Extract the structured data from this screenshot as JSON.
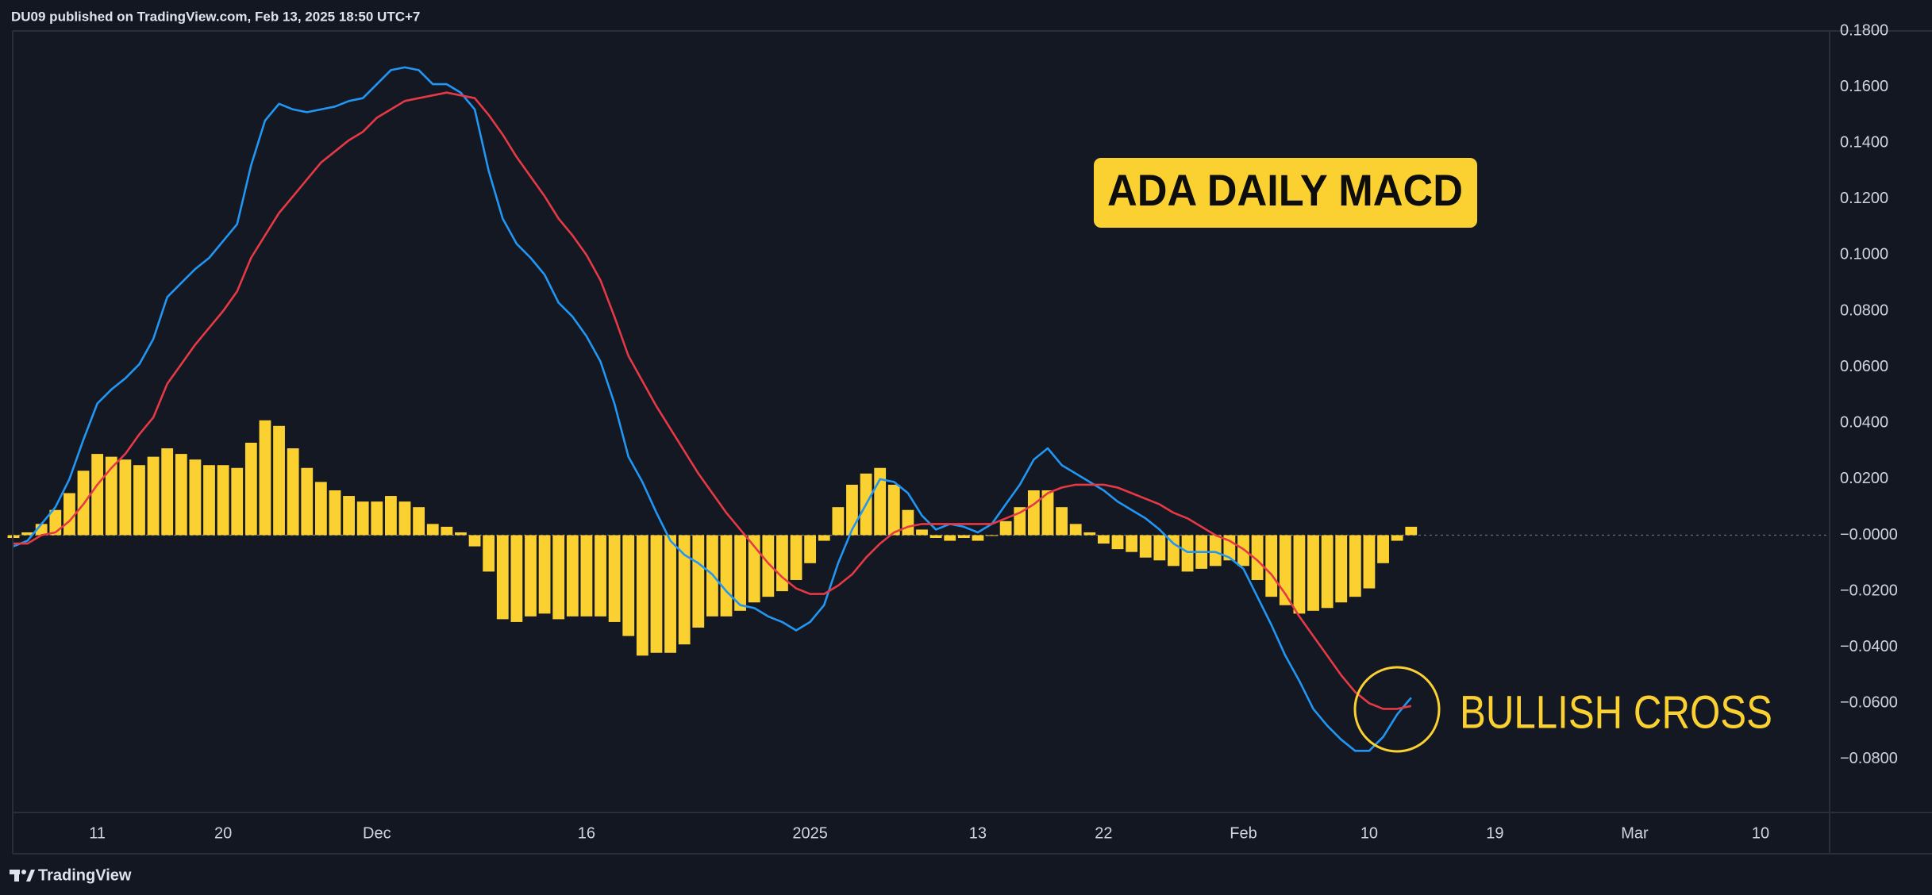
{
  "header": {
    "text": "DU09 published on TradingView.com, Feb 13, 2025 18:50 UTC+7"
  },
  "footer": {
    "brand": "TradingView"
  },
  "chart_data": {
    "type": "macd",
    "annotations": [
      {
        "text": "ADA DAILY MACD"
      },
      {
        "text": "BULLISH CROSS"
      }
    ],
    "categories": [
      null,
      null,
      null,
      null,
      null,
      null,
      "11",
      null,
      null,
      null,
      null,
      null,
      null,
      null,
      null,
      "20",
      null,
      null,
      null,
      null,
      null,
      null,
      null,
      null,
      null,
      null,
      "Dec",
      null,
      null,
      null,
      null,
      null,
      null,
      null,
      null,
      null,
      null,
      null,
      null,
      null,
      null,
      "16",
      null,
      null,
      null,
      null,
      null,
      null,
      null,
      null,
      null,
      null,
      null,
      null,
      null,
      null,
      null,
      "2025",
      null,
      null,
      null,
      null,
      null,
      null,
      null,
      null,
      null,
      null,
      null,
      "13",
      null,
      null,
      null,
      null,
      null,
      null,
      null,
      null,
      "22",
      null,
      null,
      null,
      null,
      null,
      null,
      null,
      null,
      null,
      "Feb",
      null,
      null,
      null,
      null,
      null,
      null,
      null,
      null,
      "10",
      null,
      null,
      null,
      null,
      null,
      null,
      null,
      null,
      "19",
      null,
      null,
      null,
      null,
      null,
      null,
      null,
      null,
      null,
      "Mar",
      null,
      null,
      null,
      null,
      null,
      null,
      null,
      null,
      "10",
      null,
      null,
      null,
      null
    ],
    "series": [
      {
        "type": "bar",
        "color": "#fbd132",
        "values": [
          -0.001,
          0.001,
          0.004,
          0.009,
          0.015,
          0.023,
          0.029,
          0.028,
          0.027,
          0.025,
          0.028,
          0.031,
          0.029,
          0.027,
          0.025,
          0.025,
          0.024,
          0.033,
          0.041,
          0.039,
          0.031,
          0.024,
          0.019,
          0.016,
          0.014,
          0.012,
          0.012,
          0.014,
          0.012,
          0.01,
          0.004,
          0.003,
          0.001,
          -0.004,
          -0.013,
          -0.03,
          -0.031,
          -0.029,
          -0.028,
          -0.03,
          -0.029,
          -0.029,
          -0.029,
          -0.031,
          -0.036,
          -0.043,
          -0.042,
          -0.042,
          -0.039,
          -0.033,
          -0.029,
          -0.029,
          -0.027,
          -0.024,
          -0.022,
          -0.02,
          -0.016,
          -0.01,
          -0.002,
          0.01,
          0.018,
          0.022,
          0.024,
          0.018,
          0.009,
          0.002,
          -0.001,
          -0.002,
          -0.001,
          -0.002,
          0.0,
          0.005,
          0.01,
          0.016,
          0.016,
          0.01,
          0.004,
          0.001,
          -0.003,
          -0.005,
          -0.006,
          -0.008,
          -0.009,
          -0.011,
          -0.013,
          -0.012,
          -0.011,
          -0.009,
          -0.011,
          -0.016,
          -0.022,
          -0.025,
          -0.028,
          -0.027,
          -0.026,
          -0.024,
          -0.022,
          -0.019,
          -0.01,
          -0.002,
          0.003,
          null,
          null,
          null,
          null,
          null,
          null,
          null,
          null,
          null,
          null,
          null,
          null,
          null,
          null,
          null,
          null,
          null,
          null,
          null,
          null,
          null,
          null,
          null,
          null,
          null,
          null,
          null,
          null,
          null
        ]
      },
      {
        "type": "line",
        "color": "#2196f3",
        "values": [
          -0.004,
          -0.002,
          0.004,
          0.01,
          0.02,
          0.034,
          0.047,
          0.052,
          0.056,
          0.061,
          0.07,
          0.085,
          0.09,
          0.095,
          0.099,
          0.105,
          0.111,
          0.132,
          0.148,
          0.154,
          0.152,
          0.151,
          0.152,
          0.153,
          0.155,
          0.156,
          0.161,
          0.166,
          0.167,
          0.166,
          0.161,
          0.161,
          0.158,
          0.152,
          0.13,
          0.113,
          0.104,
          0.099,
          0.093,
          0.083,
          0.078,
          0.071,
          0.062,
          0.047,
          0.028,
          0.019,
          0.008,
          -0.002,
          -0.007,
          -0.01,
          -0.014,
          -0.02,
          -0.025,
          -0.026,
          -0.029,
          -0.031,
          -0.034,
          -0.031,
          -0.025,
          -0.01,
          0.002,
          0.011,
          0.02,
          0.019,
          0.015,
          0.007,
          0.002,
          0.004,
          0.003,
          0.001,
          0.004,
          0.011,
          0.018,
          0.027,
          0.031,
          0.025,
          0.022,
          0.019,
          0.016,
          0.012,
          0.009,
          0.006,
          0.002,
          -0.003,
          -0.006,
          -0.006,
          -0.006,
          -0.008,
          -0.012,
          -0.022,
          -0.032,
          -0.043,
          -0.052,
          -0.062,
          -0.068,
          -0.073,
          -0.077,
          -0.077,
          -0.072,
          -0.064,
          -0.058,
          null,
          null,
          null,
          null,
          null,
          null,
          null,
          null,
          null,
          null,
          null,
          null,
          null,
          null,
          null,
          null,
          null,
          null,
          null,
          null,
          null,
          null,
          null,
          null,
          null,
          null,
          null,
          null,
          null
        ]
      },
      {
        "type": "line",
        "color": "#e53946",
        "values": [
          -0.003,
          -0.003,
          0.0,
          0.001,
          0.005,
          0.011,
          0.018,
          0.024,
          0.029,
          0.036,
          0.042,
          0.054,
          0.061,
          0.068,
          0.074,
          0.08,
          0.087,
          0.099,
          0.107,
          0.115,
          0.121,
          0.127,
          0.133,
          0.137,
          0.141,
          0.144,
          0.149,
          0.152,
          0.155,
          0.156,
          0.157,
          0.158,
          0.157,
          0.156,
          0.15,
          0.143,
          0.135,
          0.128,
          0.121,
          0.113,
          0.107,
          0.1,
          0.091,
          0.078,
          0.064,
          0.055,
          0.046,
          0.038,
          0.03,
          0.022,
          0.015,
          0.008,
          0.002,
          -0.004,
          -0.01,
          -0.015,
          -0.019,
          -0.021,
          -0.021,
          -0.018,
          -0.014,
          -0.008,
          -0.003,
          0.001,
          0.003,
          0.004,
          0.004,
          0.004,
          0.004,
          0.004,
          0.004,
          0.006,
          0.008,
          0.011,
          0.015,
          0.017,
          0.018,
          0.018,
          0.018,
          0.017,
          0.015,
          0.013,
          0.011,
          0.008,
          0.006,
          0.003,
          0.0,
          -0.002,
          -0.005,
          -0.009,
          -0.014,
          -0.021,
          -0.029,
          -0.036,
          -0.043,
          -0.05,
          -0.056,
          -0.06,
          -0.062,
          -0.062,
          -0.061,
          null,
          null,
          null,
          null,
          null,
          null,
          null,
          null,
          null,
          null,
          null,
          null,
          null,
          null,
          null,
          null,
          null,
          null,
          null,
          null,
          null,
          null,
          null,
          null,
          null,
          null,
          null,
          null,
          null
        ]
      }
    ],
    "ylim": [
      -0.099,
      0.18
    ],
    "yticks": [
      {
        "value": -0.08,
        "label": "−0.0800"
      },
      {
        "value": -0.06,
        "label": "−0.0600"
      },
      {
        "value": -0.04,
        "label": "−0.0400"
      },
      {
        "value": -0.02,
        "label": "−0.0200"
      },
      {
        "value": 0,
        "label": "−0.0000"
      },
      {
        "value": 0.02,
        "label": "0.0200"
      },
      {
        "value": 0.04,
        "label": "0.0400"
      },
      {
        "value": 0.06,
        "label": "0.0600"
      },
      {
        "value": 0.08,
        "label": "0.0800"
      },
      {
        "value": 0.1,
        "label": "0.1000"
      },
      {
        "value": 0.12,
        "label": "0.1200"
      },
      {
        "value": 0.14,
        "label": "0.1400"
      },
      {
        "value": 0.16,
        "label": "0.1600"
      },
      {
        "value": 0.18,
        "label": "0.1800"
      }
    ],
    "grid": false,
    "zero_line": true
  }
}
